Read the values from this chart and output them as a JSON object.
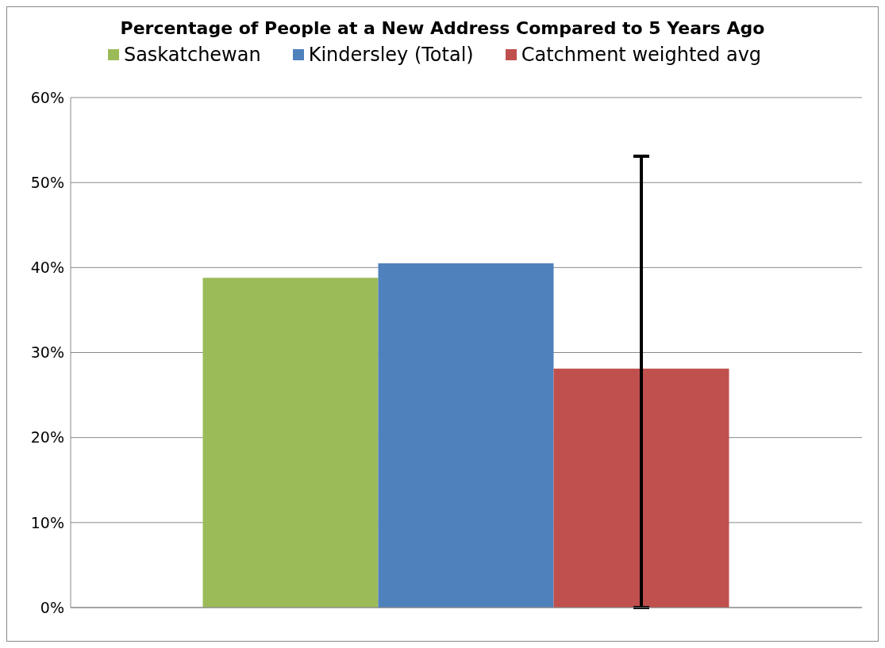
{
  "chart_data": {
    "type": "bar",
    "title": "Percentage of People at a New Address Compared to 5 Years Ago",
    "categories": [
      null
    ],
    "series": [
      {
        "name": "Saskatchewan",
        "color": "#9bbb59",
        "values": [
          38.8
        ]
      },
      {
        "name": "Kindersley (Total)",
        "color": "#4f81bd",
        "values": [
          40.5
        ]
      },
      {
        "name": "Catchment weighted avg",
        "color": "#c0504d",
        "values": [
          28.1
        ],
        "errors": [
          [
            0,
            53.1
          ]
        ]
      }
    ],
    "ylim": [
      0,
      60
    ],
    "yticks": [
      {
        "value": 0,
        "label": "0%"
      },
      {
        "value": 10,
        "label": "10%"
      },
      {
        "value": 20,
        "label": "20%"
      },
      {
        "value": 30,
        "label": "30%"
      },
      {
        "value": 40,
        "label": "40%"
      },
      {
        "value": 50,
        "label": "50%"
      },
      {
        "value": 60,
        "label": "60%"
      }
    ],
    "grid": "y",
    "legend": "top"
  }
}
